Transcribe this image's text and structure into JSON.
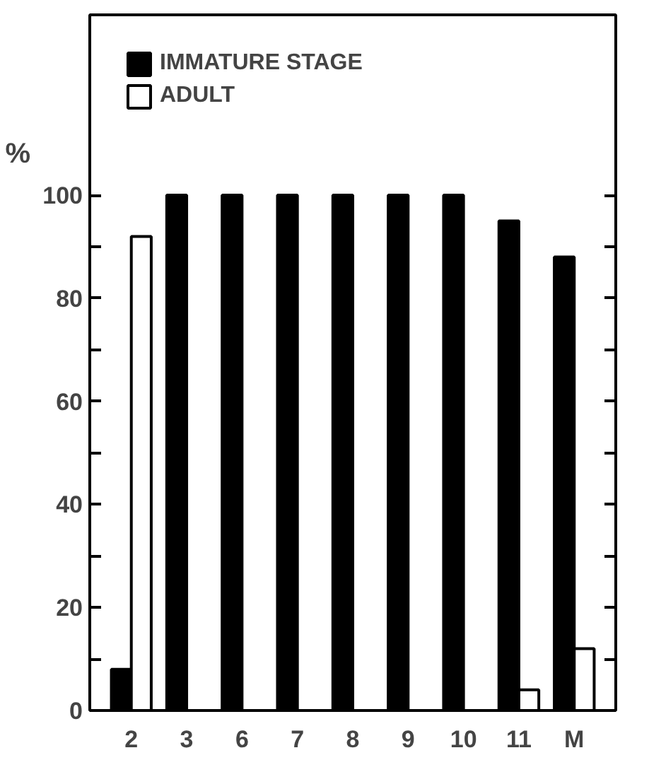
{
  "chart_data": {
    "type": "bar",
    "ylabel": "%",
    "categories": [
      "2",
      "3",
      "6",
      "7",
      "8",
      "9",
      "10",
      "11",
      "M"
    ],
    "series": [
      {
        "name": "IMMATURE STAGE",
        "color": "#000000",
        "values": [
          8,
          100,
          100,
          100,
          100,
          100,
          100,
          95,
          88
        ]
      },
      {
        "name": "ADULT",
        "color": "#ffffff",
        "values": [
          92,
          0,
          0,
          0,
          0,
          0,
          0,
          4,
          12
        ]
      }
    ],
    "ylim": [
      0,
      135
    ],
    "yticks": [
      0,
      20,
      40,
      60,
      80,
      100
    ],
    "grid": false,
    "legend": "top left"
  }
}
